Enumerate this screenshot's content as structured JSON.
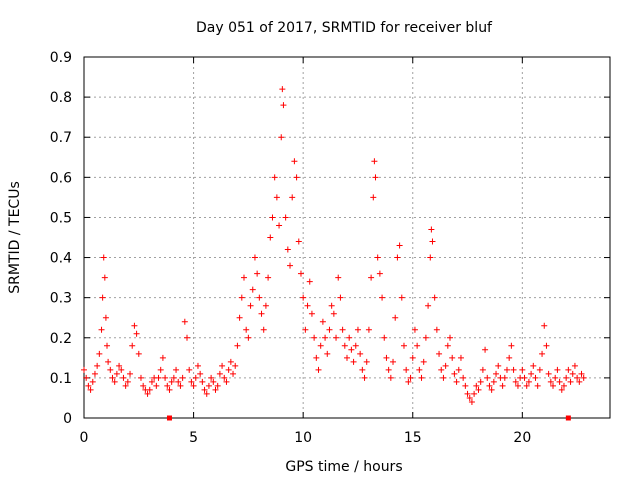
{
  "chart_data": {
    "type": "scatter",
    "title": "Day 051 of 2017, SRMTID for receiver bluf",
    "xlabel": "GPS time / hours",
    "ylabel": "SRMTID / TECUs",
    "xlim": [
      0,
      24
    ],
    "ylim": [
      0,
      0.9
    ],
    "xticks": [
      0,
      5,
      10,
      15,
      20
    ],
    "xtick_labels": [
      "0",
      "5",
      "10",
      "15",
      "20"
    ],
    "yticks": [
      0,
      0.1,
      0.2,
      0.3,
      0.4,
      0.5,
      0.6,
      0.7,
      0.8,
      0.9
    ],
    "ytick_labels": [
      "0",
      "0.1",
      "0.2",
      "0.3",
      "0.4",
      "0.5",
      "0.6",
      "0.7",
      "0.8",
      "0.9"
    ],
    "grid": true,
    "marker": "+",
    "color": "#ff0000",
    "series": [
      {
        "name": "SRMTID",
        "points": [
          [
            0.0,
            0.12
          ],
          [
            0.1,
            0.1
          ],
          [
            0.2,
            0.08
          ],
          [
            0.3,
            0.07
          ],
          [
            0.4,
            0.09
          ],
          [
            0.5,
            0.11
          ],
          [
            0.6,
            0.13
          ],
          [
            0.7,
            0.16
          ],
          [
            0.8,
            0.22
          ],
          [
            0.85,
            0.3
          ],
          [
            0.9,
            0.4
          ],
          [
            0.95,
            0.35
          ],
          [
            1.0,
            0.25
          ],
          [
            1.05,
            0.18
          ],
          [
            1.1,
            0.14
          ],
          [
            1.2,
            0.12
          ],
          [
            1.3,
            0.1
          ],
          [
            1.4,
            0.09
          ],
          [
            1.5,
            0.11
          ],
          [
            1.6,
            0.13
          ],
          [
            1.7,
            0.12
          ],
          [
            1.8,
            0.1
          ],
          [
            1.9,
            0.08
          ],
          [
            2.0,
            0.09
          ],
          [
            2.1,
            0.11
          ],
          [
            2.2,
            0.18
          ],
          [
            2.3,
            0.23
          ],
          [
            2.4,
            0.21
          ],
          [
            2.5,
            0.16
          ],
          [
            2.6,
            0.1
          ],
          [
            2.7,
            0.08
          ],
          [
            2.8,
            0.07
          ],
          [
            2.9,
            0.06
          ],
          [
            3.0,
            0.07
          ],
          [
            3.1,
            0.09
          ],
          [
            3.2,
            0.1
          ],
          [
            3.3,
            0.08
          ],
          [
            3.4,
            0.1
          ],
          [
            3.5,
            0.12
          ],
          [
            3.6,
            0.15
          ],
          [
            3.7,
            0.1
          ],
          [
            3.8,
            0.08
          ],
          [
            3.9,
            0.07
          ],
          [
            4.0,
            0.09
          ],
          [
            4.1,
            0.1
          ],
          [
            4.2,
            0.12
          ],
          [
            4.3,
            0.09
          ],
          [
            4.4,
            0.08
          ],
          [
            4.5,
            0.1
          ],
          [
            4.6,
            0.24
          ],
          [
            4.7,
            0.2
          ],
          [
            4.8,
            0.12
          ],
          [
            4.9,
            0.09
          ],
          [
            5.0,
            0.08
          ],
          [
            5.1,
            0.1
          ],
          [
            5.2,
            0.13
          ],
          [
            5.3,
            0.11
          ],
          [
            5.4,
            0.09
          ],
          [
            5.5,
            0.07
          ],
          [
            5.6,
            0.06
          ],
          [
            5.7,
            0.08
          ],
          [
            5.8,
            0.1
          ],
          [
            5.9,
            0.09
          ],
          [
            6.0,
            0.07
          ],
          [
            6.1,
            0.08
          ],
          [
            6.2,
            0.11
          ],
          [
            6.3,
            0.13
          ],
          [
            6.4,
            0.1
          ],
          [
            6.5,
            0.09
          ],
          [
            6.6,
            0.12
          ],
          [
            6.7,
            0.14
          ],
          [
            6.8,
            0.11
          ],
          [
            6.9,
            0.13
          ],
          [
            7.0,
            0.18
          ],
          [
            7.1,
            0.25
          ],
          [
            7.2,
            0.3
          ],
          [
            7.3,
            0.35
          ],
          [
            7.4,
            0.22
          ],
          [
            7.5,
            0.2
          ],
          [
            7.6,
            0.28
          ],
          [
            7.7,
            0.32
          ],
          [
            7.8,
            0.4
          ],
          [
            7.9,
            0.36
          ],
          [
            8.0,
            0.3
          ],
          [
            8.1,
            0.26
          ],
          [
            8.2,
            0.22
          ],
          [
            8.3,
            0.28
          ],
          [
            8.4,
            0.35
          ],
          [
            8.5,
            0.45
          ],
          [
            8.6,
            0.5
          ],
          [
            8.7,
            0.6
          ],
          [
            8.8,
            0.55
          ],
          [
            8.9,
            0.48
          ],
          [
            9.0,
            0.7
          ],
          [
            9.05,
            0.82
          ],
          [
            9.1,
            0.78
          ],
          [
            9.2,
            0.5
          ],
          [
            9.3,
            0.42
          ],
          [
            9.4,
            0.38
          ],
          [
            9.5,
            0.55
          ],
          [
            9.6,
            0.64
          ],
          [
            9.7,
            0.6
          ],
          [
            9.8,
            0.44
          ],
          [
            9.9,
            0.36
          ],
          [
            10.0,
            0.3
          ],
          [
            10.1,
            0.22
          ],
          [
            10.2,
            0.28
          ],
          [
            10.3,
            0.34
          ],
          [
            10.4,
            0.26
          ],
          [
            10.5,
            0.2
          ],
          [
            10.6,
            0.15
          ],
          [
            10.7,
            0.12
          ],
          [
            10.8,
            0.18
          ],
          [
            10.9,
            0.24
          ],
          [
            11.0,
            0.2
          ],
          [
            11.1,
            0.16
          ],
          [
            11.2,
            0.22
          ],
          [
            11.3,
            0.28
          ],
          [
            11.4,
            0.26
          ],
          [
            11.5,
            0.2
          ],
          [
            11.6,
            0.35
          ],
          [
            11.7,
            0.3
          ],
          [
            11.8,
            0.22
          ],
          [
            11.9,
            0.18
          ],
          [
            12.0,
            0.15
          ],
          [
            12.1,
            0.2
          ],
          [
            12.2,
            0.17
          ],
          [
            12.3,
            0.14
          ],
          [
            12.4,
            0.18
          ],
          [
            12.5,
            0.22
          ],
          [
            12.6,
            0.16
          ],
          [
            12.7,
            0.12
          ],
          [
            12.8,
            0.1
          ],
          [
            12.9,
            0.14
          ],
          [
            13.0,
            0.22
          ],
          [
            13.1,
            0.35
          ],
          [
            13.2,
            0.55
          ],
          [
            13.25,
            0.64
          ],
          [
            13.3,
            0.6
          ],
          [
            13.4,
            0.4
          ],
          [
            13.5,
            0.36
          ],
          [
            13.6,
            0.3
          ],
          [
            13.7,
            0.2
          ],
          [
            13.8,
            0.15
          ],
          [
            13.9,
            0.12
          ],
          [
            14.0,
            0.1
          ],
          [
            14.1,
            0.14
          ],
          [
            14.2,
            0.25
          ],
          [
            14.3,
            0.4
          ],
          [
            14.4,
            0.43
          ],
          [
            14.5,
            0.3
          ],
          [
            14.6,
            0.18
          ],
          [
            14.7,
            0.12
          ],
          [
            14.8,
            0.09
          ],
          [
            14.9,
            0.1
          ],
          [
            15.0,
            0.15
          ],
          [
            15.1,
            0.22
          ],
          [
            15.2,
            0.18
          ],
          [
            15.3,
            0.12
          ],
          [
            15.4,
            0.1
          ],
          [
            15.5,
            0.14
          ],
          [
            15.6,
            0.2
          ],
          [
            15.7,
            0.28
          ],
          [
            15.8,
            0.4
          ],
          [
            15.85,
            0.47
          ],
          [
            15.9,
            0.44
          ],
          [
            16.0,
            0.3
          ],
          [
            16.1,
            0.22
          ],
          [
            16.2,
            0.16
          ],
          [
            16.3,
            0.12
          ],
          [
            16.4,
            0.1
          ],
          [
            16.5,
            0.13
          ],
          [
            16.6,
            0.18
          ],
          [
            16.7,
            0.2
          ],
          [
            16.8,
            0.15
          ],
          [
            16.9,
            0.11
          ],
          [
            17.0,
            0.09
          ],
          [
            17.1,
            0.12
          ],
          [
            17.2,
            0.15
          ],
          [
            17.3,
            0.1
          ],
          [
            17.4,
            0.08
          ],
          [
            17.5,
            0.06
          ],
          [
            17.6,
            0.05
          ],
          [
            17.7,
            0.04
          ],
          [
            17.8,
            0.06
          ],
          [
            17.9,
            0.08
          ],
          [
            18.0,
            0.07
          ],
          [
            18.1,
            0.09
          ],
          [
            18.2,
            0.12
          ],
          [
            18.3,
            0.17
          ],
          [
            18.4,
            0.1
          ],
          [
            18.5,
            0.08
          ],
          [
            18.6,
            0.07
          ],
          [
            18.7,
            0.09
          ],
          [
            18.8,
            0.11
          ],
          [
            18.9,
            0.13
          ],
          [
            19.0,
            0.1
          ],
          [
            19.1,
            0.08
          ],
          [
            19.2,
            0.1
          ],
          [
            19.3,
            0.12
          ],
          [
            19.4,
            0.15
          ],
          [
            19.5,
            0.18
          ],
          [
            19.6,
            0.12
          ],
          [
            19.7,
            0.09
          ],
          [
            19.8,
            0.08
          ],
          [
            19.9,
            0.1
          ],
          [
            20.0,
            0.12
          ],
          [
            20.1,
            0.1
          ],
          [
            20.2,
            0.08
          ],
          [
            20.3,
            0.09
          ],
          [
            20.4,
            0.11
          ],
          [
            20.5,
            0.13
          ],
          [
            20.6,
            0.1
          ],
          [
            20.7,
            0.08
          ],
          [
            20.8,
            0.12
          ],
          [
            20.9,
            0.16
          ],
          [
            21.0,
            0.23
          ],
          [
            21.1,
            0.18
          ],
          [
            21.2,
            0.11
          ],
          [
            21.3,
            0.09
          ],
          [
            21.4,
            0.08
          ],
          [
            21.5,
            0.1
          ],
          [
            21.6,
            0.12
          ],
          [
            21.7,
            0.09
          ],
          [
            21.8,
            0.07
          ],
          [
            21.9,
            0.08
          ],
          [
            22.0,
            0.1
          ],
          [
            22.1,
            0.12
          ],
          [
            22.2,
            0.09
          ],
          [
            22.3,
            0.11
          ],
          [
            22.4,
            0.13
          ],
          [
            22.5,
            0.1
          ],
          [
            22.6,
            0.09
          ],
          [
            22.7,
            0.11
          ],
          [
            22.8,
            0.1
          ]
        ]
      }
    ],
    "zero_markers": [
      3.9,
      22.1
    ]
  }
}
